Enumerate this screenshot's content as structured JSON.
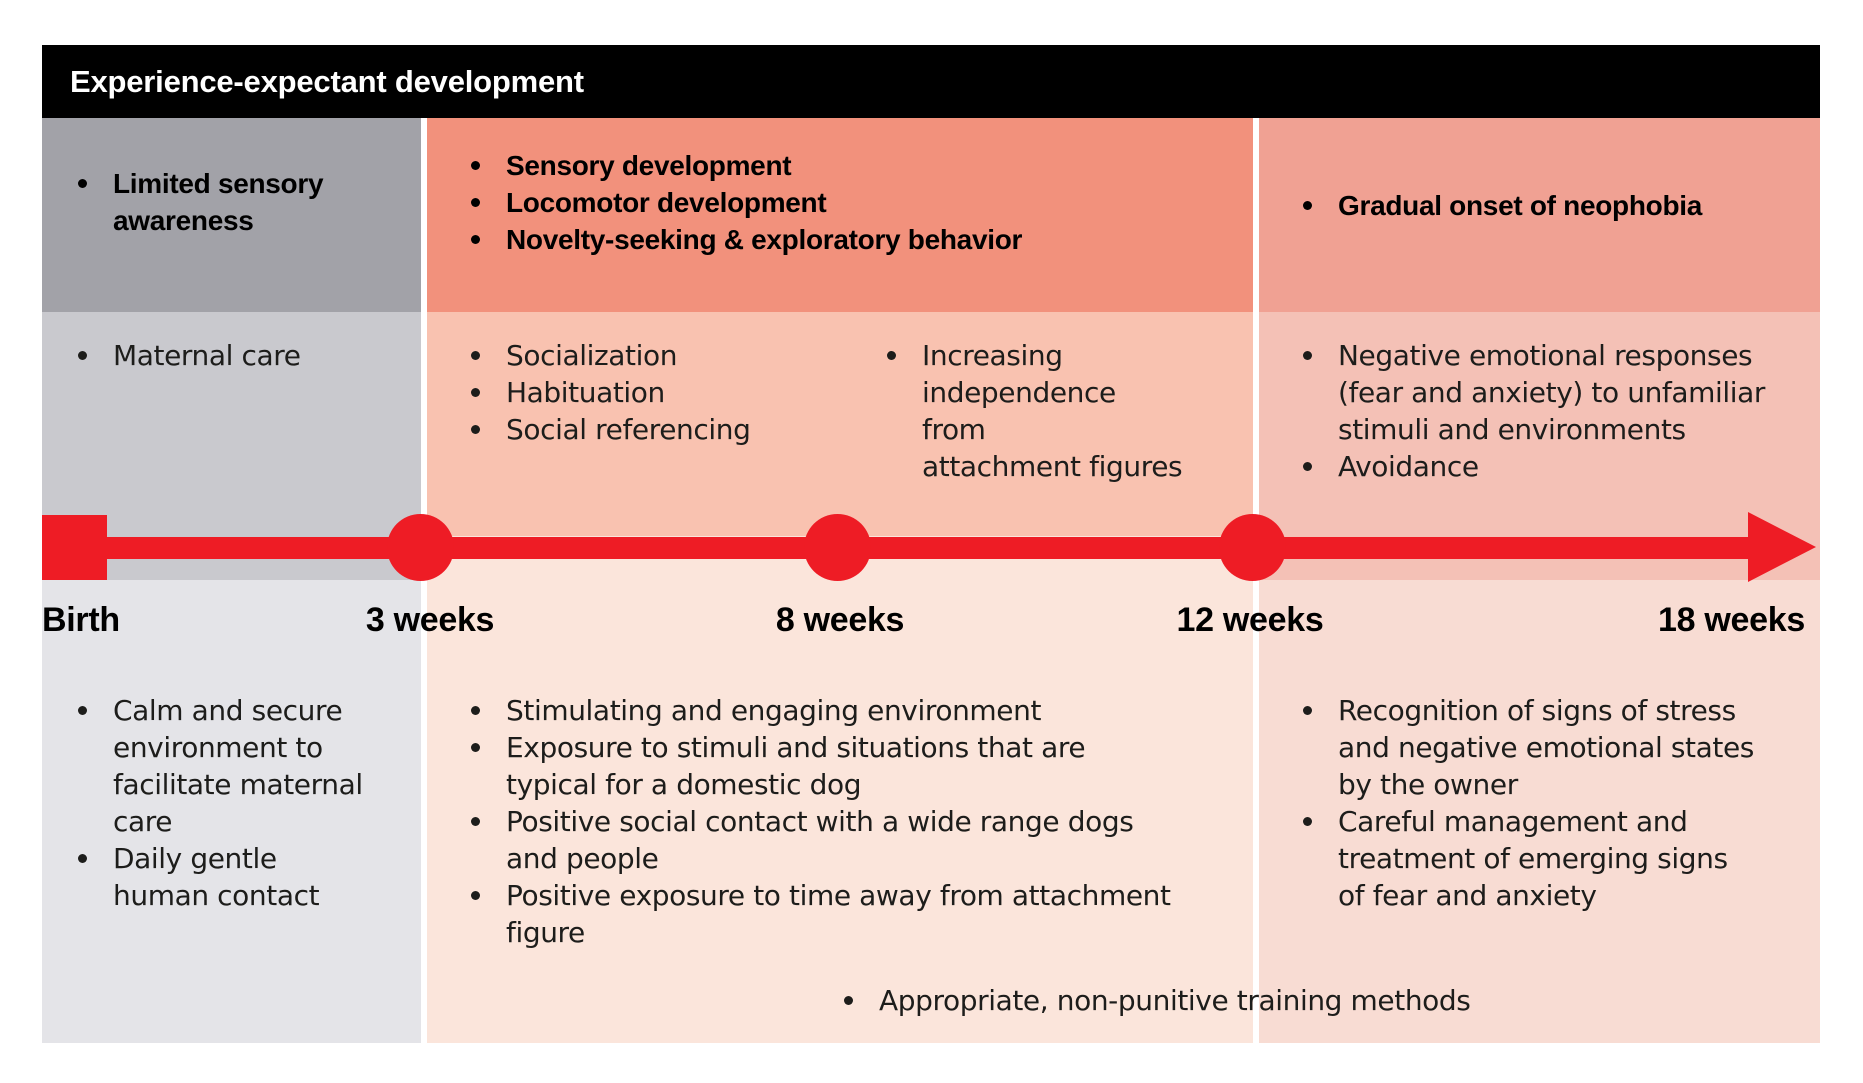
{
  "header": {
    "title": "Experience-expectant development"
  },
  "timeline": {
    "labels": [
      "Birth",
      "3 weeks",
      "8 weeks",
      "12 weeks",
      "18 weeks"
    ],
    "marker_color": "#ee1c25"
  },
  "columns": [
    {
      "period": "birth-to-3-weeks",
      "top_items": [
        "Limited sensory\nawareness"
      ],
      "middle_items": [
        "Maternal care"
      ],
      "bottom_items": [
        "Calm and secure\nenvironment to\nfacilitate maternal\ncare",
        "Daily gentle\nhuman contact"
      ]
    },
    {
      "period": "3-to-12-weeks",
      "top_items": [
        "Sensory development",
        "Locomotor development",
        "Novelty-seeking & exploratory behavior"
      ],
      "middle_items": [
        "Socialization",
        "Habituation",
        "Social referencing"
      ],
      "middle_items_right": [
        "Increasing\nindependence from\nattachment figures"
      ],
      "bottom_items": [
        "Stimulating and engaging environment",
        "Exposure to stimuli and situations that are\ntypical for a domestic dog",
        "Positive social contact with a wide range dogs\nand people",
        "Positive exposure to time away from attachment\nfigure"
      ]
    },
    {
      "period": "12-to-18-weeks",
      "top_items": [
        "Gradual onset of neophobia"
      ],
      "middle_items": [
        "Negative emotional responses\n(fear and anxiety) to unfamiliar\nstimuli and environments",
        "Avoidance"
      ],
      "bottom_items": [
        "Recognition of signs of stress\nand negative emotional states\nby the owner",
        "Careful management and\ntreatment of emerging signs\nof fear and anxiety"
      ]
    }
  ],
  "footer_item": "Appropriate, non-punitive training methods",
  "colors": {
    "header_bg": "#000000",
    "timeline_red": "#ee1c25",
    "col1_top": "#a2a2a8",
    "col1_mid": "#c9c9ce",
    "col1_bottom": "#e4e4e8",
    "col2_top": "#f2917c",
    "col2_mid": "#f9c2b0",
    "col2_bottom": "#fbe5db",
    "col3_top": "#f0a193",
    "col3_mid": "#f4c1b6",
    "col3_bottom": "#f8dcd3"
  }
}
